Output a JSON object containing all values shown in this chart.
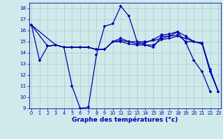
{
  "s1_x": [
    0,
    1,
    2,
    3,
    4,
    5,
    6,
    7,
    8,
    9,
    10,
    11,
    12,
    13,
    14,
    15,
    16,
    17,
    18,
    19,
    20,
    21,
    22
  ],
  "s1_y": [
    16.5,
    13.3,
    14.6,
    14.7,
    14.5,
    11.0,
    9.0,
    9.1,
    13.8,
    16.4,
    16.6,
    18.2,
    17.3,
    15.0,
    14.7,
    14.5,
    15.5,
    15.5,
    15.9,
    14.9,
    13.3,
    12.3,
    10.5
  ],
  "s2_x": [
    2,
    3,
    4,
    5,
    6,
    7,
    8,
    9,
    10,
    11,
    12,
    13,
    14,
    15,
    16,
    17,
    18,
    19,
    20,
    21,
    22,
    23
  ],
  "s2_y": [
    14.6,
    14.7,
    14.5,
    14.5,
    14.5,
    14.5,
    14.3,
    14.3,
    15.0,
    15.1,
    15.0,
    15.0,
    15.0,
    15.1,
    15.3,
    15.5,
    15.6,
    15.0,
    15.0,
    14.9,
    12.3,
    10.5
  ],
  "s3_x": [
    0,
    3,
    4,
    5,
    6,
    7,
    8,
    9,
    10,
    11,
    12,
    13,
    14,
    15,
    16,
    17,
    18,
    19,
    20,
    21,
    22,
    23
  ],
  "s3_y": [
    16.5,
    14.7,
    14.5,
    14.5,
    14.5,
    14.5,
    14.3,
    14.3,
    15.0,
    15.3,
    15.0,
    14.8,
    14.9,
    15.2,
    15.6,
    15.7,
    15.9,
    15.5,
    15.0,
    14.9,
    12.5,
    10.5
  ],
  "s4_x": [
    0,
    2,
    3,
    4,
    5,
    6,
    7,
    8,
    9,
    10,
    11,
    12,
    13,
    14,
    15,
    16,
    17,
    18,
    19,
    20,
    21,
    22,
    23
  ],
  "s4_y": [
    16.5,
    14.6,
    14.7,
    14.5,
    14.5,
    14.5,
    14.5,
    14.3,
    14.3,
    15.0,
    15.0,
    14.8,
    14.7,
    14.7,
    14.7,
    15.2,
    15.3,
    15.5,
    15.3,
    15.0,
    14.8,
    12.3,
    10.5
  ],
  "xlim": [
    -0.3,
    23.3
  ],
  "ylim": [
    9,
    18.5
  ],
  "yticks": [
    9,
    10,
    11,
    12,
    13,
    14,
    15,
    16,
    17,
    18
  ],
  "xticks": [
    0,
    1,
    2,
    3,
    4,
    5,
    6,
    7,
    8,
    9,
    10,
    11,
    12,
    13,
    14,
    15,
    16,
    17,
    18,
    19,
    20,
    21,
    22,
    23
  ],
  "xlabel": "Graphe des températures (°c)",
  "bg_color": "#ceeaea",
  "line_color": "#0000aa",
  "grid_color": "#aacccc"
}
